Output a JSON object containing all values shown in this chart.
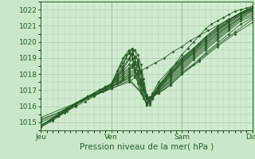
{
  "title": "Pression niveau de la mer( hPa )",
  "bg_color": "#c8e8c8",
  "plot_bg_color": "#d0ecd0",
  "grid_color": "#a8cca8",
  "line_color": "#2a5c2a",
  "ylim": [
    1014.5,
    1022.5
  ],
  "xlim": [
    0,
    72
  ],
  "yticks": [
    1015,
    1016,
    1017,
    1018,
    1019,
    1020,
    1021,
    1022
  ],
  "xtick_positions": [
    0,
    24,
    48,
    72
  ],
  "xtick_labels": [
    "Jeu",
    "Ven",
    "Sam",
    "Dim"
  ],
  "series": [
    [
      0,
      1014.7,
      3,
      1015.1,
      6,
      1015.4,
      9,
      1015.7,
      12,
      1016.0,
      15,
      1016.3,
      18,
      1016.6,
      21,
      1016.9,
      24,
      1017.2,
      27,
      1017.5,
      30,
      1017.8,
      33,
      1018.1,
      36,
      1018.4,
      39,
      1018.7,
      42,
      1019.0,
      45,
      1019.4,
      48,
      1019.7,
      51,
      1020.1,
      54,
      1020.4,
      57,
      1020.7,
      60,
      1021.0,
      63,
      1021.3,
      66,
      1021.6,
      69,
      1021.9,
      72,
      1022.2
    ],
    [
      0,
      1014.8,
      6,
      1015.5,
      12,
      1016.2,
      18,
      1016.8,
      22,
      1017.2,
      24,
      1017.4,
      27,
      1018.5,
      29,
      1019.2,
      30,
      1019.3,
      31,
      1019.0,
      32,
      1018.3,
      33,
      1017.4,
      34,
      1016.8,
      36,
      1016.2,
      38,
      1016.7,
      40,
      1017.3,
      44,
      1018.0,
      48,
      1018.7,
      52,
      1019.3,
      56,
      1019.9,
      60,
      1020.5,
      64,
      1021.0,
      68,
      1021.5,
      72,
      1022.0
    ],
    [
      0,
      1014.8,
      6,
      1015.5,
      12,
      1016.2,
      18,
      1016.8,
      22,
      1017.1,
      24,
      1017.4,
      26,
      1018.2,
      28,
      1019.0,
      30,
      1019.5,
      31,
      1019.2,
      32,
      1018.4,
      34,
      1017.0,
      36,
      1016.1,
      38,
      1016.8,
      40,
      1017.5,
      44,
      1018.3,
      48,
      1019.0,
      52,
      1019.6,
      56,
      1020.3,
      60,
      1020.9,
      64,
      1021.4,
      68,
      1021.8,
      72,
      1022.1
    ],
    [
      0,
      1014.8,
      4,
      1015.2,
      8,
      1015.7,
      12,
      1016.2,
      16,
      1016.6,
      20,
      1017.0,
      22,
      1017.2,
      24,
      1017.4,
      26,
      1018.0,
      28,
      1018.7,
      30,
      1019.3,
      31,
      1019.5,
      32,
      1019.0,
      33,
      1018.2,
      34,
      1017.3,
      36,
      1016.1,
      38,
      1016.6,
      40,
      1017.2,
      44,
      1018.0,
      48,
      1018.8,
      52,
      1019.4,
      56,
      1020.1,
      60,
      1020.7,
      64,
      1021.2,
      68,
      1021.7,
      72,
      1022.1
    ],
    [
      0,
      1014.8,
      4,
      1015.2,
      8,
      1015.7,
      12,
      1016.2,
      16,
      1016.6,
      20,
      1017.0,
      22,
      1017.2,
      24,
      1017.4,
      26,
      1017.9,
      28,
      1018.5,
      29,
      1019.0,
      30,
      1019.4,
      31,
      1019.6,
      32,
      1019.0,
      33,
      1018.0,
      34,
      1017.0,
      36,
      1016.1,
      38,
      1016.6,
      40,
      1017.2,
      44,
      1018.1,
      48,
      1018.9,
      52,
      1019.5,
      56,
      1020.2,
      60,
      1020.8,
      64,
      1021.3,
      68,
      1021.8,
      72,
      1022.1
    ],
    [
      0,
      1014.8,
      4,
      1015.2,
      8,
      1015.7,
      12,
      1016.2,
      16,
      1016.6,
      20,
      1017.0,
      22,
      1017.2,
      24,
      1017.4,
      26,
      1017.8,
      28,
      1018.3,
      30,
      1018.9,
      31,
      1019.3,
      32,
      1019.5,
      33,
      1018.8,
      34,
      1017.6,
      35,
      1016.5,
      36,
      1016.2,
      38,
      1016.7,
      40,
      1017.3,
      44,
      1018.2,
      48,
      1019.0,
      52,
      1019.6,
      56,
      1020.3,
      60,
      1020.9,
      64,
      1021.4,
      68,
      1021.8,
      72,
      1022.1
    ],
    [
      0,
      1014.8,
      4,
      1015.2,
      8,
      1015.7,
      12,
      1016.2,
      16,
      1016.6,
      20,
      1017.0,
      22,
      1017.2,
      24,
      1017.4,
      26,
      1017.8,
      28,
      1018.2,
      30,
      1018.6,
      31,
      1018.9,
      32,
      1019.1,
      33,
      1018.9,
      34,
      1018.2,
      35,
      1017.2,
      36,
      1016.3,
      37,
      1016.1,
      38,
      1016.5,
      40,
      1017.2,
      44,
      1018.1,
      48,
      1018.9,
      52,
      1019.6,
      56,
      1020.2,
      60,
      1020.8,
      64,
      1021.3,
      68,
      1021.8,
      72,
      1022.1
    ],
    [
      0,
      1014.8,
      4,
      1015.2,
      8,
      1015.7,
      12,
      1016.2,
      16,
      1016.6,
      20,
      1017.0,
      22,
      1017.2,
      24,
      1017.3,
      26,
      1017.7,
      28,
      1018.1,
      30,
      1018.4,
      31,
      1018.6,
      32,
      1018.8,
      33,
      1018.7,
      34,
      1018.2,
      35,
      1017.4,
      36,
      1016.5,
      37,
      1016.2,
      38,
      1016.5,
      40,
      1017.1,
      44,
      1018.0,
      48,
      1018.8,
      52,
      1019.5,
      56,
      1020.1,
      60,
      1020.7,
      64,
      1021.3,
      68,
      1021.8,
      72,
      1022.0
    ],
    [
      0,
      1014.8,
      4,
      1015.2,
      8,
      1015.7,
      12,
      1016.2,
      16,
      1016.6,
      20,
      1017.0,
      22,
      1017.1,
      24,
      1017.3,
      26,
      1017.6,
      28,
      1018.0,
      30,
      1018.3,
      31,
      1018.5,
      32,
      1018.7,
      33,
      1018.6,
      34,
      1018.1,
      35,
      1017.4,
      36,
      1016.6,
      37,
      1016.3,
      38,
      1016.5,
      40,
      1017.1,
      44,
      1017.9,
      48,
      1018.7,
      52,
      1019.4,
      56,
      1020.0,
      60,
      1020.6,
      64,
      1021.2,
      68,
      1021.7,
      72,
      1022.0
    ],
    [
      0,
      1014.8,
      4,
      1015.2,
      8,
      1015.7,
      12,
      1016.2,
      16,
      1016.6,
      20,
      1017.0,
      22,
      1017.1,
      24,
      1017.3,
      26,
      1017.6,
      28,
      1017.9,
      30,
      1018.2,
      31,
      1018.4,
      32,
      1018.6,
      33,
      1018.5,
      34,
      1018.0,
      35,
      1017.4,
      36,
      1016.6,
      37,
      1016.3,
      38,
      1016.5,
      40,
      1017.0,
      44,
      1017.9,
      48,
      1018.6,
      52,
      1019.3,
      56,
      1019.9,
      60,
      1020.5,
      64,
      1021.1,
      68,
      1021.7,
      72,
      1021.9
    ],
    [
      0,
      1014.8,
      6,
      1015.4,
      12,
      1016.1,
      18,
      1016.7,
      22,
      1017.0,
      24,
      1017.2,
      26,
      1017.5,
      28,
      1017.8,
      30,
      1018.1,
      32,
      1018.3,
      33,
      1018.2,
      34,
      1017.7,
      35,
      1017.2,
      36,
      1016.6,
      38,
      1016.5,
      40,
      1017.0,
      44,
      1017.8,
      48,
      1018.5,
      52,
      1019.2,
      56,
      1019.8,
      60,
      1020.4,
      64,
      1021.0,
      68,
      1021.6,
      72,
      1021.9
    ],
    [
      0,
      1014.8,
      6,
      1015.4,
      12,
      1016.1,
      18,
      1016.7,
      22,
      1017.0,
      24,
      1017.2,
      26,
      1017.4,
      28,
      1017.7,
      30,
      1018.0,
      32,
      1018.2,
      34,
      1017.6,
      35,
      1017.1,
      36,
      1016.5,
      38,
      1016.5,
      40,
      1016.9,
      44,
      1017.7,
      48,
      1018.4,
      52,
      1019.1,
      56,
      1019.7,
      60,
      1020.3,
      64,
      1020.9,
      68,
      1021.5,
      72,
      1021.8
    ],
    [
      0,
      1014.8,
      6,
      1015.4,
      12,
      1016.1,
      18,
      1016.7,
      22,
      1017.0,
      24,
      1017.2,
      26,
      1017.4,
      28,
      1017.7,
      30,
      1017.9,
      32,
      1018.1,
      34,
      1017.5,
      35,
      1017.0,
      36,
      1016.5,
      38,
      1016.5,
      40,
      1016.9,
      44,
      1017.6,
      48,
      1018.3,
      52,
      1019.0,
      56,
      1019.6,
      60,
      1020.2,
      64,
      1020.8,
      68,
      1021.4,
      72,
      1021.7
    ],
    [
      0,
      1015.0,
      6,
      1015.5,
      12,
      1016.2,
      18,
      1016.7,
      22,
      1017.0,
      24,
      1017.2,
      28,
      1017.6,
      30,
      1017.8,
      32,
      1017.9,
      34,
      1017.4,
      36,
      1016.5,
      38,
      1016.5,
      40,
      1016.9,
      44,
      1017.5,
      48,
      1018.2,
      52,
      1018.9,
      56,
      1019.5,
      60,
      1020.1,
      64,
      1020.7,
      68,
      1021.3,
      72,
      1021.6
    ],
    [
      0,
      1015.1,
      6,
      1015.6,
      12,
      1016.2,
      18,
      1016.7,
      24,
      1017.2,
      30,
      1017.7,
      36,
      1016.5,
      40,
      1016.8,
      44,
      1017.4,
      48,
      1018.1,
      54,
      1018.9,
      60,
      1019.8,
      66,
      1020.6,
      72,
      1021.4
    ],
    [
      0,
      1015.2,
      6,
      1015.6,
      12,
      1016.2,
      18,
      1016.7,
      24,
      1017.1,
      30,
      1017.6,
      36,
      1016.5,
      40,
      1016.8,
      44,
      1017.3,
      48,
      1018.0,
      54,
      1018.8,
      60,
      1019.7,
      66,
      1020.5,
      72,
      1021.2
    ],
    [
      0,
      1015.3,
      12,
      1016.2,
      24,
      1017.1,
      30,
      1017.5,
      32,
      1017.8,
      34,
      1017.3,
      36,
      1016.5,
      40,
      1016.8,
      44,
      1017.3,
      48,
      1018.0,
      52,
      1018.6,
      56,
      1019.3,
      60,
      1019.9,
      64,
      1020.5,
      68,
      1021.1,
      72,
      1021.5
    ],
    [
      0,
      1014.7,
      4,
      1015.1,
      8,
      1015.6,
      12,
      1016.1,
      16,
      1016.5,
      20,
      1016.9,
      22,
      1017.1,
      24,
      1017.3,
      26,
      1017.8,
      28,
      1018.4,
      30,
      1019.0,
      31,
      1019.3,
      32,
      1019.5,
      33,
      1019.2,
      34,
      1018.6,
      35,
      1017.7,
      36,
      1016.7,
      37,
      1016.3,
      38,
      1016.5,
      40,
      1017.1,
      42,
      1017.6,
      44,
      1018.2,
      46,
      1018.7,
      48,
      1019.2,
      50,
      1019.6,
      52,
      1020.0,
      54,
      1020.4,
      56,
      1020.8,
      58,
      1021.1,
      60,
      1021.3,
      62,
      1021.5,
      64,
      1021.7,
      66,
      1021.9,
      68,
      1022.0,
      70,
      1022.1,
      72,
      1022.2
    ]
  ]
}
